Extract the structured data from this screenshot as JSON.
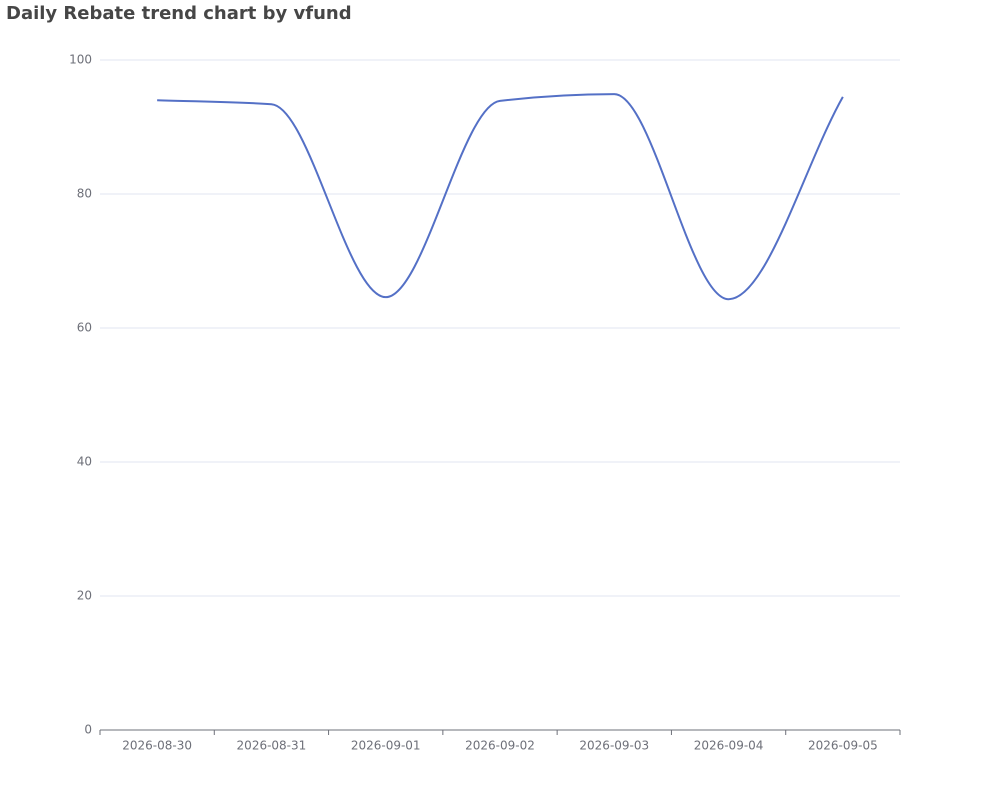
{
  "chart_data": {
    "type": "line",
    "title": "Daily Rebate trend chart by vfund",
    "categories": [
      "2026-08-30",
      "2026-08-31",
      "2026-09-01",
      "2026-09-02",
      "2026-09-03",
      "2026-09-04",
      "2026-09-05"
    ],
    "values": [
      94.0,
      93.4,
      64.6,
      93.9,
      94.9,
      64.3,
      94.5
    ],
    "color": "#5470c6",
    "smooth": true,
    "ylim": [
      0,
      100
    ],
    "yticks": [
      0,
      20,
      40,
      60,
      80,
      100
    ],
    "grid": true
  }
}
